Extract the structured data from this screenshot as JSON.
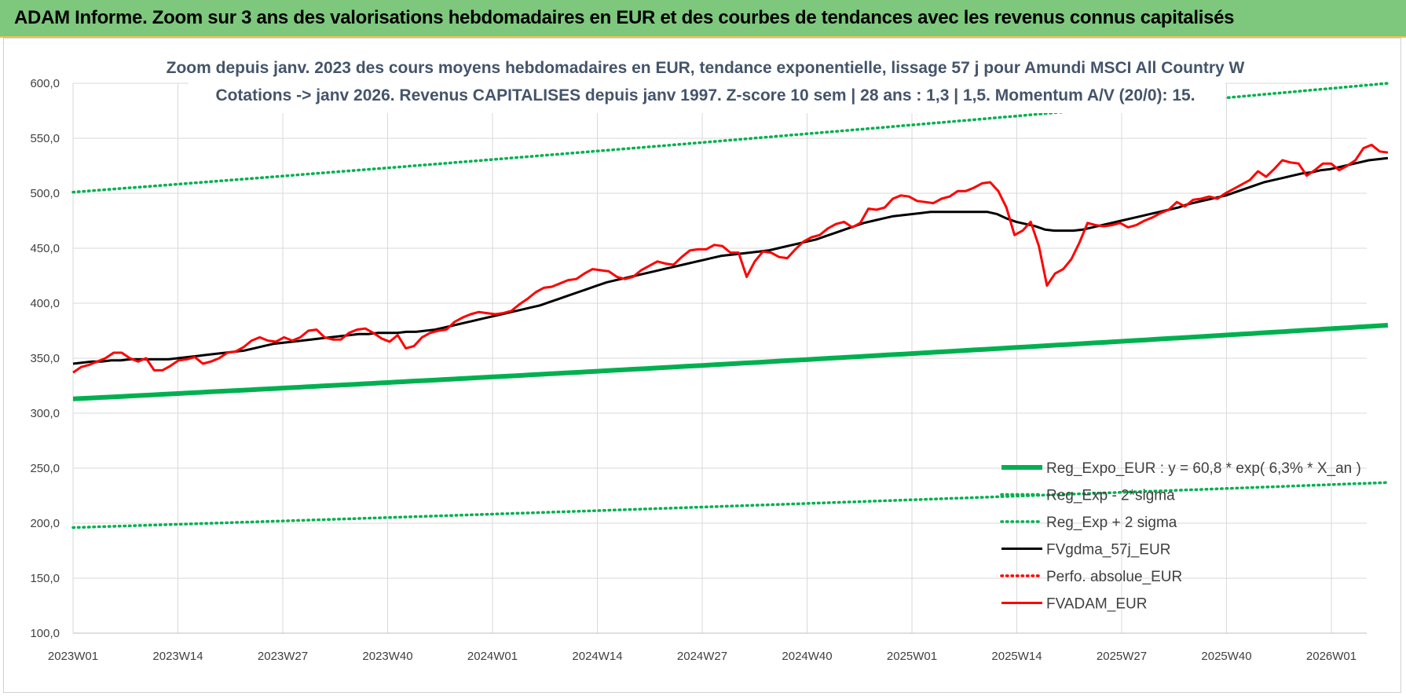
{
  "banner": {
    "title": "ADAM Informe. Zoom sur 3 ans des valorisations hebdomadaires en EUR et des courbes de tendances avec les revenus connus capitalisés"
  },
  "chart_data": {
    "type": "line",
    "title": [
      "Zoom depuis janv. 2023 des cours moyens hebdomadaires en EUR, tendance exponentielle, lissage 57 j pour Amundi MSCI All Country W",
      "Cotations -> janv 2026. Revenus CAPITALISES depuis janv 1997. Z-score 10 sem | 28 ans : 1,3 | 1,5. Momentum A/V (20/0): 15."
    ],
    "xlabel": "",
    "ylabel": "",
    "ylim": [
      100,
      600
    ],
    "yticks": [
      "100,0",
      "150,0",
      "200,0",
      "250,0",
      "300,0",
      "350,0",
      "400,0",
      "450,0",
      "500,0",
      "550,0",
      "600,0"
    ],
    "xticks": [
      "2023W01",
      "2023W14",
      "2023W27",
      "2023W40",
      "2024W01",
      "2024W14",
      "2024W27",
      "2024W40",
      "2025W01",
      "2025W14",
      "2025W27",
      "2025W40",
      "2026W01"
    ],
    "x_start": "2023W01",
    "grid": true,
    "legend_position": "bottom-right",
    "series": [
      {
        "name": "Reg_Expo_EUR : y = 60,8 * exp( 6,3% *  X_an )",
        "color": "#00b050",
        "style": "thick",
        "values": [
          313.0,
          380.0
        ]
      },
      {
        "name": "Reg_Exp - 2*sigma",
        "color": "#00b050",
        "style": "dotted",
        "values": [
          196.0,
          237.0
        ]
      },
      {
        "name": "Reg_Exp + 2 sigma",
        "color": "#00b050",
        "style": "dotted",
        "values": [
          501.0,
          600.0
        ]
      },
      {
        "name": "FVgdma_57j_EUR",
        "color": "#000000",
        "style": "solid",
        "values": [
          345,
          346,
          347,
          347,
          348,
          348,
          349,
          349,
          349,
          349,
          349,
          350,
          351,
          352,
          353,
          354,
          355,
          356,
          357,
          359,
          361,
          363,
          364,
          365,
          366,
          367,
          368,
          369,
          370,
          371,
          372,
          372,
          373,
          373,
          373,
          374,
          374,
          375,
          376,
          378,
          380,
          382,
          384,
          386,
          388,
          390,
          392,
          394,
          396,
          398,
          401,
          404,
          407,
          410,
          413,
          416,
          419,
          421,
          423,
          425,
          427,
          429,
          431,
          433,
          435,
          437,
          439,
          441,
          443,
          444,
          445,
          446,
          447,
          448,
          450,
          452,
          454,
          456,
          458,
          461,
          464,
          467,
          470,
          473,
          475,
          477,
          479,
          480,
          481,
          482,
          483,
          483,
          483,
          483,
          483,
          483,
          483,
          481,
          477,
          474,
          472,
          470,
          467,
          466,
          466,
          466,
          467,
          469,
          471,
          473,
          475,
          477,
          479,
          481,
          483,
          485,
          487,
          490,
          492,
          494,
          496,
          498,
          501,
          504,
          507,
          510,
          512,
          514,
          516,
          518,
          519,
          521,
          522,
          524,
          526,
          528,
          530,
          531,
          532
        ]
      },
      {
        "name": "Perfo. absolue_EUR",
        "color": "#ff0000",
        "style": "dotted",
        "values": []
      },
      {
        "name": "FVADAM_EUR",
        "color": "#ff0000",
        "style": "solid",
        "values": [
          337,
          342,
          344,
          347,
          350,
          355,
          355,
          350,
          347,
          350,
          339,
          339,
          343,
          348,
          349,
          351,
          345,
          347,
          350,
          355,
          356,
          360,
          366,
          369,
          366,
          365,
          369,
          366,
          369,
          375,
          376,
          369,
          367,
          367,
          373,
          376,
          377,
          373,
          368,
          365,
          371,
          359,
          361,
          369,
          373,
          375,
          376,
          383,
          387,
          390,
          392,
          391,
          390,
          391,
          393,
          399,
          404,
          410,
          414,
          415,
          418,
          421,
          422,
          427,
          431,
          430,
          429,
          424,
          422,
          424,
          430,
          434,
          438,
          436,
          435,
          442,
          448,
          449,
          449,
          453,
          452,
          446,
          446,
          424,
          438,
          447,
          446,
          442,
          441,
          449,
          456,
          460,
          462,
          468,
          472,
          474,
          469,
          473,
          486,
          485,
          487,
          495,
          498,
          497,
          493,
          492,
          491,
          495,
          497,
          502,
          502,
          505,
          509,
          510,
          502,
          487,
          462,
          466,
          474,
          452,
          416,
          427,
          431,
          440,
          455,
          473,
          471,
          470,
          471,
          473,
          469,
          471,
          475,
          478,
          482,
          485,
          492,
          488,
          494,
          495,
          497,
          495,
          500,
          504,
          508,
          512,
          520,
          515,
          522,
          530,
          528,
          527,
          516,
          521,
          527,
          527,
          521,
          525,
          530,
          541,
          544,
          538,
          537
        ]
      }
    ]
  }
}
